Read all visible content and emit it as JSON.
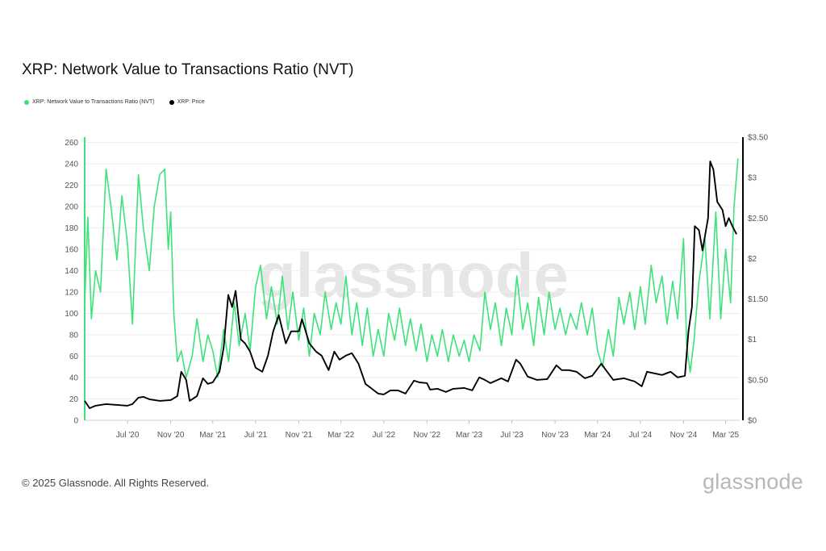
{
  "title": "XRP: Network Value to Transactions Ratio (NVT)",
  "legend": [
    {
      "label": "XRP: Network Value to Transactions Ratio (NVT)",
      "color": "#3ee27a"
    },
    {
      "label": "XRP: Price",
      "color": "#000000"
    }
  ],
  "footer": "© 2025 Glassnode. All Rights Reserved.",
  "brand": "glassnode",
  "watermark": "glassnode",
  "chart_data": {
    "type": "line",
    "x_range": [
      "2020-03-01",
      "2025-04-10"
    ],
    "x_ticks": [
      "Jul '20",
      "Nov '20",
      "Mar '21",
      "Jul '21",
      "Nov '21",
      "Mar '22",
      "Jul '22",
      "Nov '22",
      "Mar '23",
      "Jul '23",
      "Nov '23",
      "Mar '24",
      "Jul '24",
      "Nov '24",
      "Mar '25"
    ],
    "y_left": {
      "ticks": [
        "0",
        "20",
        "40",
        "60",
        "80",
        "100",
        "120",
        "140",
        "160",
        "180",
        "200",
        "220",
        "240",
        "260"
      ],
      "range": [
        0,
        265
      ]
    },
    "y_right": {
      "ticks": [
        "$0",
        "$0.50",
        "$1",
        "$1.50",
        "$2",
        "$2.50",
        "$3",
        "$3.50"
      ],
      "range": [
        0,
        3.5
      ]
    },
    "series": [
      {
        "name": "XRP: Network Value to Transactions Ratio (NVT)",
        "axis": "left",
        "color": "#3ee27a",
        "points": [
          [
            "2020-03-01",
            110
          ],
          [
            "2020-03-10",
            190
          ],
          [
            "2020-03-20",
            95
          ],
          [
            "2020-04-01",
            140
          ],
          [
            "2020-04-15",
            120
          ],
          [
            "2020-05-01",
            235
          ],
          [
            "2020-05-15",
            200
          ],
          [
            "2020-06-01",
            150
          ],
          [
            "2020-06-15",
            210
          ],
          [
            "2020-07-01",
            165
          ],
          [
            "2020-07-15",
            90
          ],
          [
            "2020-08-01",
            230
          ],
          [
            "2020-08-15",
            180
          ],
          [
            "2020-09-01",
            140
          ],
          [
            "2020-09-15",
            200
          ],
          [
            "2020-10-01",
            230
          ],
          [
            "2020-10-15",
            235
          ],
          [
            "2020-10-25",
            160
          ],
          [
            "2020-11-01",
            195
          ],
          [
            "2020-11-10",
            100
          ],
          [
            "2020-11-20",
            55
          ],
          [
            "2020-12-01",
            65
          ],
          [
            "2020-12-15",
            40
          ],
          [
            "2021-01-01",
            60
          ],
          [
            "2021-01-15",
            95
          ],
          [
            "2021-02-01",
            55
          ],
          [
            "2021-02-15",
            80
          ],
          [
            "2021-03-01",
            65
          ],
          [
            "2021-03-15",
            40
          ],
          [
            "2021-04-01",
            85
          ],
          [
            "2021-04-15",
            55
          ],
          [
            "2021-05-01",
            110
          ],
          [
            "2021-05-15",
            70
          ],
          [
            "2021-06-01",
            100
          ],
          [
            "2021-06-15",
            65
          ],
          [
            "2021-07-01",
            125
          ],
          [
            "2021-07-15",
            145
          ],
          [
            "2021-08-01",
            95
          ],
          [
            "2021-08-15",
            125
          ],
          [
            "2021-09-01",
            90
          ],
          [
            "2021-09-15",
            135
          ],
          [
            "2021-10-01",
            85
          ],
          [
            "2021-10-15",
            120
          ],
          [
            "2021-11-01",
            75
          ],
          [
            "2021-11-15",
            105
          ],
          [
            "2021-12-01",
            60
          ],
          [
            "2021-12-15",
            100
          ],
          [
            "2022-01-01",
            80
          ],
          [
            "2022-01-15",
            120
          ],
          [
            "2022-02-01",
            85
          ],
          [
            "2022-02-15",
            110
          ],
          [
            "2022-03-01",
            90
          ],
          [
            "2022-03-15",
            135
          ],
          [
            "2022-04-01",
            80
          ],
          [
            "2022-04-15",
            110
          ],
          [
            "2022-05-01",
            70
          ],
          [
            "2022-05-15",
            105
          ],
          [
            "2022-06-01",
            60
          ],
          [
            "2022-06-15",
            85
          ],
          [
            "2022-07-01",
            60
          ],
          [
            "2022-07-15",
            100
          ],
          [
            "2022-08-01",
            75
          ],
          [
            "2022-08-15",
            105
          ],
          [
            "2022-09-01",
            70
          ],
          [
            "2022-09-15",
            95
          ],
          [
            "2022-10-01",
            65
          ],
          [
            "2022-10-15",
            90
          ],
          [
            "2022-11-01",
            55
          ],
          [
            "2022-11-15",
            80
          ],
          [
            "2022-12-01",
            60
          ],
          [
            "2022-12-15",
            85
          ],
          [
            "2023-01-01",
            55
          ],
          [
            "2023-01-15",
            80
          ],
          [
            "2023-02-01",
            60
          ],
          [
            "2023-02-15",
            75
          ],
          [
            "2023-03-01",
            55
          ],
          [
            "2023-03-15",
            80
          ],
          [
            "2023-04-01",
            65
          ],
          [
            "2023-04-15",
            120
          ],
          [
            "2023-05-01",
            85
          ],
          [
            "2023-05-15",
            110
          ],
          [
            "2023-06-01",
            70
          ],
          [
            "2023-06-15",
            105
          ],
          [
            "2023-07-01",
            80
          ],
          [
            "2023-07-15",
            135
          ],
          [
            "2023-08-01",
            85
          ],
          [
            "2023-08-15",
            110
          ],
          [
            "2023-09-01",
            70
          ],
          [
            "2023-09-15",
            115
          ],
          [
            "2023-10-01",
            80
          ],
          [
            "2023-10-15",
            120
          ],
          [
            "2023-11-01",
            85
          ],
          [
            "2023-11-15",
            105
          ],
          [
            "2023-12-01",
            80
          ],
          [
            "2023-12-15",
            100
          ],
          [
            "2024-01-01",
            85
          ],
          [
            "2024-01-15",
            110
          ],
          [
            "2024-02-01",
            80
          ],
          [
            "2024-02-15",
            105
          ],
          [
            "2024-03-01",
            65
          ],
          [
            "2024-03-15",
            50
          ],
          [
            "2024-04-01",
            85
          ],
          [
            "2024-04-15",
            60
          ],
          [
            "2024-05-01",
            115
          ],
          [
            "2024-05-15",
            90
          ],
          [
            "2024-06-01",
            120
          ],
          [
            "2024-06-15",
            85
          ],
          [
            "2024-07-01",
            125
          ],
          [
            "2024-07-15",
            90
          ],
          [
            "2024-08-01",
            145
          ],
          [
            "2024-08-15",
            110
          ],
          [
            "2024-09-01",
            135
          ],
          [
            "2024-09-15",
            90
          ],
          [
            "2024-10-01",
            130
          ],
          [
            "2024-10-15",
            95
          ],
          [
            "2024-11-01",
            170
          ],
          [
            "2024-11-10",
            70
          ],
          [
            "2024-11-20",
            45
          ],
          [
            "2024-12-01",
            75
          ],
          [
            "2024-12-15",
            130
          ],
          [
            "2025-01-01",
            170
          ],
          [
            "2025-01-15",
            95
          ],
          [
            "2025-02-01",
            195
          ],
          [
            "2025-02-15",
            95
          ],
          [
            "2025-03-01",
            160
          ],
          [
            "2025-03-15",
            110
          ],
          [
            "2025-03-25",
            200
          ],
          [
            "2025-04-05",
            245
          ]
        ]
      },
      {
        "name": "XRP: Price",
        "axis": "right",
        "color": "#000000",
        "points": [
          [
            "2020-03-01",
            0.24
          ],
          [
            "2020-03-15",
            0.15
          ],
          [
            "2020-04-01",
            0.18
          ],
          [
            "2020-05-01",
            0.2
          ],
          [
            "2020-06-01",
            0.19
          ],
          [
            "2020-07-01",
            0.18
          ],
          [
            "2020-07-15",
            0.2
          ],
          [
            "2020-08-01",
            0.28
          ],
          [
            "2020-08-15",
            0.29
          ],
          [
            "2020-09-01",
            0.26
          ],
          [
            "2020-10-01",
            0.24
          ],
          [
            "2020-11-01",
            0.25
          ],
          [
            "2020-11-20",
            0.3
          ],
          [
            "2020-12-01",
            0.6
          ],
          [
            "2020-12-15",
            0.5
          ],
          [
            "2020-12-25",
            0.24
          ],
          [
            "2021-01-15",
            0.3
          ],
          [
            "2021-02-01",
            0.52
          ],
          [
            "2021-02-15",
            0.45
          ],
          [
            "2021-03-01",
            0.47
          ],
          [
            "2021-03-20",
            0.6
          ],
          [
            "2021-04-01",
            0.9
          ],
          [
            "2021-04-14",
            1.55
          ],
          [
            "2021-04-25",
            1.4
          ],
          [
            "2021-05-05",
            1.6
          ],
          [
            "2021-05-20",
            1.0
          ],
          [
            "2021-06-01",
            0.95
          ],
          [
            "2021-06-15",
            0.85
          ],
          [
            "2021-07-01",
            0.65
          ],
          [
            "2021-07-20",
            0.6
          ],
          [
            "2021-08-05",
            0.8
          ],
          [
            "2021-08-20",
            1.1
          ],
          [
            "2021-09-05",
            1.3
          ],
          [
            "2021-09-25",
            0.95
          ],
          [
            "2021-10-10",
            1.1
          ],
          [
            "2021-11-01",
            1.1
          ],
          [
            "2021-11-10",
            1.25
          ],
          [
            "2021-12-01",
            0.95
          ],
          [
            "2021-12-20",
            0.85
          ],
          [
            "2022-01-05",
            0.8
          ],
          [
            "2022-01-25",
            0.62
          ],
          [
            "2022-02-10",
            0.85
          ],
          [
            "2022-02-25",
            0.75
          ],
          [
            "2022-03-15",
            0.8
          ],
          [
            "2022-04-01",
            0.83
          ],
          [
            "2022-04-20",
            0.7
          ],
          [
            "2022-05-10",
            0.45
          ],
          [
            "2022-05-25",
            0.4
          ],
          [
            "2022-06-15",
            0.33
          ],
          [
            "2022-07-01",
            0.32
          ],
          [
            "2022-07-20",
            0.37
          ],
          [
            "2022-08-10",
            0.37
          ],
          [
            "2022-09-01",
            0.33
          ],
          [
            "2022-09-25",
            0.49
          ],
          [
            "2022-10-10",
            0.47
          ],
          [
            "2022-11-01",
            0.46
          ],
          [
            "2022-11-10",
            0.38
          ],
          [
            "2022-12-01",
            0.39
          ],
          [
            "2022-12-25",
            0.35
          ],
          [
            "2023-01-15",
            0.39
          ],
          [
            "2023-02-15",
            0.4
          ],
          [
            "2023-03-10",
            0.37
          ],
          [
            "2023-03-30",
            0.53
          ],
          [
            "2023-04-15",
            0.5
          ],
          [
            "2023-05-01",
            0.46
          ],
          [
            "2023-06-01",
            0.52
          ],
          [
            "2023-06-20",
            0.48
          ],
          [
            "2023-07-13",
            0.75
          ],
          [
            "2023-07-25",
            0.7
          ],
          [
            "2023-08-15",
            0.54
          ],
          [
            "2023-09-10",
            0.5
          ],
          [
            "2023-10-10",
            0.51
          ],
          [
            "2023-11-05",
            0.68
          ],
          [
            "2023-11-20",
            0.62
          ],
          [
            "2023-12-10",
            0.62
          ],
          [
            "2024-01-01",
            0.6
          ],
          [
            "2024-01-25",
            0.52
          ],
          [
            "2024-02-15",
            0.55
          ],
          [
            "2024-03-12",
            0.7
          ],
          [
            "2024-03-25",
            0.62
          ],
          [
            "2024-04-15",
            0.5
          ],
          [
            "2024-05-15",
            0.52
          ],
          [
            "2024-06-15",
            0.48
          ],
          [
            "2024-07-05",
            0.42
          ],
          [
            "2024-07-20",
            0.6
          ],
          [
            "2024-08-10",
            0.58
          ],
          [
            "2024-09-01",
            0.56
          ],
          [
            "2024-09-25",
            0.6
          ],
          [
            "2024-10-15",
            0.53
          ],
          [
            "2024-11-05",
            0.55
          ],
          [
            "2024-11-15",
            1.1
          ],
          [
            "2024-11-25",
            1.4
          ],
          [
            "2024-12-03",
            2.4
          ],
          [
            "2024-12-15",
            2.35
          ],
          [
            "2024-12-25",
            2.1
          ],
          [
            "2025-01-10",
            2.5
          ],
          [
            "2025-01-16",
            3.2
          ],
          [
            "2025-01-25",
            3.1
          ],
          [
            "2025-02-05",
            2.7
          ],
          [
            "2025-02-20",
            2.6
          ],
          [
            "2025-03-01",
            2.4
          ],
          [
            "2025-03-10",
            2.5
          ],
          [
            "2025-03-20",
            2.4
          ],
          [
            "2025-04-01",
            2.3
          ]
        ]
      }
    ],
    "grid": true,
    "legend_position": "top-left"
  }
}
